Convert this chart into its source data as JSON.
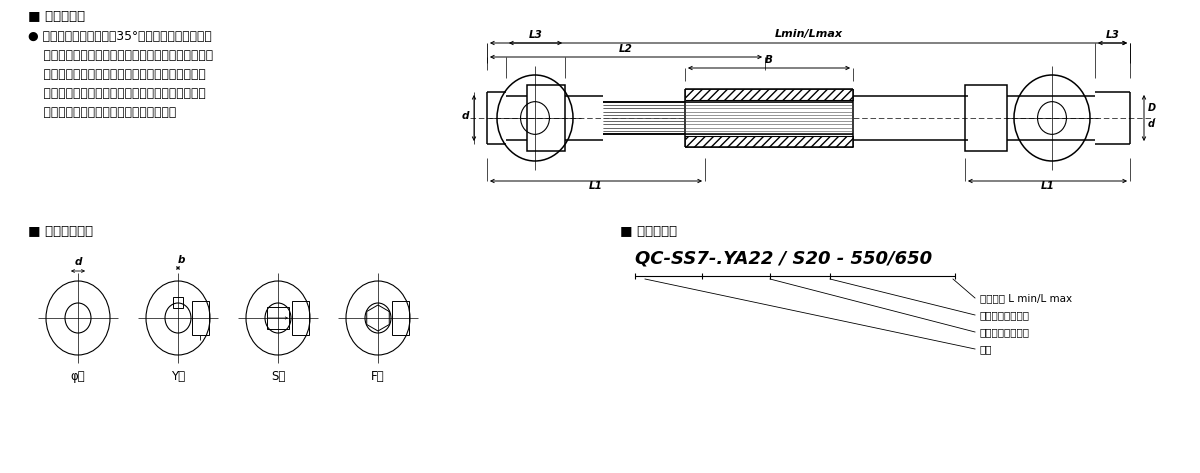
{
  "bg_color": "#ffffff",
  "text_color": "#000000",
  "section1_header": "■ 结构特点：",
  "section1_body": [
    "● 本标准每节转动角度＜35°，截面承载力大，传递",
    "    精度高，方便更快捷的装卸。可根据要求开键槽孔，",
    "    四方孔，六方孔等球和套筒接头取决于偏转角度和",
    "    负载，关节部位不应受到轴向拉力。保证无故障运",
    "    行，接头部位必须经常进行充分的润滑。"
  ],
  "section2_header": "■ 成品孔型式：",
  "hole_types": [
    "φ型",
    "Y型",
    "S型",
    "F型"
  ],
  "section3_header": "■ 标记示例：",
  "marking_example": "QC-SS7-.YA22 / S20 - 550/650",
  "marking_labels": [
    "安装长度 L min/L max",
    "从动轴孔径及类别",
    "主动轴孔径及类别",
    "型号"
  ],
  "dim_labels": {
    "Lmin_Lmax": "Lmin/Lmax",
    "L2": "L2",
    "B": "B",
    "L3": "L3",
    "L1": "L1",
    "d": "d",
    "D": "D"
  }
}
